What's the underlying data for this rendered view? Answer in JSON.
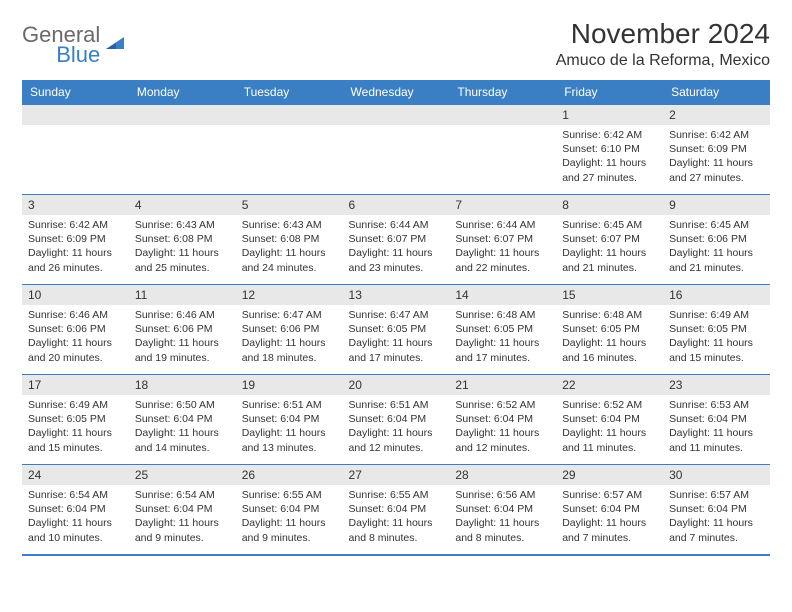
{
  "logo": {
    "line1": "General",
    "line2": "Blue"
  },
  "title": "November 2024",
  "location": "Amuco de la Reforma, Mexico",
  "header_bg": "#3a7fc4",
  "weekdays": [
    "Sunday",
    "Monday",
    "Tuesday",
    "Wednesday",
    "Thursday",
    "Friday",
    "Saturday"
  ],
  "rows": [
    [
      null,
      null,
      null,
      null,
      null,
      {
        "n": "1",
        "sunrise": "Sunrise: 6:42 AM",
        "sunset": "Sunset: 6:10 PM",
        "daylight": "Daylight: 11 hours and 27 minutes."
      },
      {
        "n": "2",
        "sunrise": "Sunrise: 6:42 AM",
        "sunset": "Sunset: 6:09 PM",
        "daylight": "Daylight: 11 hours and 27 minutes."
      }
    ],
    [
      {
        "n": "3",
        "sunrise": "Sunrise: 6:42 AM",
        "sunset": "Sunset: 6:09 PM",
        "daylight": "Daylight: 11 hours and 26 minutes."
      },
      {
        "n": "4",
        "sunrise": "Sunrise: 6:43 AM",
        "sunset": "Sunset: 6:08 PM",
        "daylight": "Daylight: 11 hours and 25 minutes."
      },
      {
        "n": "5",
        "sunrise": "Sunrise: 6:43 AM",
        "sunset": "Sunset: 6:08 PM",
        "daylight": "Daylight: 11 hours and 24 minutes."
      },
      {
        "n": "6",
        "sunrise": "Sunrise: 6:44 AM",
        "sunset": "Sunset: 6:07 PM",
        "daylight": "Daylight: 11 hours and 23 minutes."
      },
      {
        "n": "7",
        "sunrise": "Sunrise: 6:44 AM",
        "sunset": "Sunset: 6:07 PM",
        "daylight": "Daylight: 11 hours and 22 minutes."
      },
      {
        "n": "8",
        "sunrise": "Sunrise: 6:45 AM",
        "sunset": "Sunset: 6:07 PM",
        "daylight": "Daylight: 11 hours and 21 minutes."
      },
      {
        "n": "9",
        "sunrise": "Sunrise: 6:45 AM",
        "sunset": "Sunset: 6:06 PM",
        "daylight": "Daylight: 11 hours and 21 minutes."
      }
    ],
    [
      {
        "n": "10",
        "sunrise": "Sunrise: 6:46 AM",
        "sunset": "Sunset: 6:06 PM",
        "daylight": "Daylight: 11 hours and 20 minutes."
      },
      {
        "n": "11",
        "sunrise": "Sunrise: 6:46 AM",
        "sunset": "Sunset: 6:06 PM",
        "daylight": "Daylight: 11 hours and 19 minutes."
      },
      {
        "n": "12",
        "sunrise": "Sunrise: 6:47 AM",
        "sunset": "Sunset: 6:06 PM",
        "daylight": "Daylight: 11 hours and 18 minutes."
      },
      {
        "n": "13",
        "sunrise": "Sunrise: 6:47 AM",
        "sunset": "Sunset: 6:05 PM",
        "daylight": "Daylight: 11 hours and 17 minutes."
      },
      {
        "n": "14",
        "sunrise": "Sunrise: 6:48 AM",
        "sunset": "Sunset: 6:05 PM",
        "daylight": "Daylight: 11 hours and 17 minutes."
      },
      {
        "n": "15",
        "sunrise": "Sunrise: 6:48 AM",
        "sunset": "Sunset: 6:05 PM",
        "daylight": "Daylight: 11 hours and 16 minutes."
      },
      {
        "n": "16",
        "sunrise": "Sunrise: 6:49 AM",
        "sunset": "Sunset: 6:05 PM",
        "daylight": "Daylight: 11 hours and 15 minutes."
      }
    ],
    [
      {
        "n": "17",
        "sunrise": "Sunrise: 6:49 AM",
        "sunset": "Sunset: 6:05 PM",
        "daylight": "Daylight: 11 hours and 15 minutes."
      },
      {
        "n": "18",
        "sunrise": "Sunrise: 6:50 AM",
        "sunset": "Sunset: 6:04 PM",
        "daylight": "Daylight: 11 hours and 14 minutes."
      },
      {
        "n": "19",
        "sunrise": "Sunrise: 6:51 AM",
        "sunset": "Sunset: 6:04 PM",
        "daylight": "Daylight: 11 hours and 13 minutes."
      },
      {
        "n": "20",
        "sunrise": "Sunrise: 6:51 AM",
        "sunset": "Sunset: 6:04 PM",
        "daylight": "Daylight: 11 hours and 12 minutes."
      },
      {
        "n": "21",
        "sunrise": "Sunrise: 6:52 AM",
        "sunset": "Sunset: 6:04 PM",
        "daylight": "Daylight: 11 hours and 12 minutes."
      },
      {
        "n": "22",
        "sunrise": "Sunrise: 6:52 AM",
        "sunset": "Sunset: 6:04 PM",
        "daylight": "Daylight: 11 hours and 11 minutes."
      },
      {
        "n": "23",
        "sunrise": "Sunrise: 6:53 AM",
        "sunset": "Sunset: 6:04 PM",
        "daylight": "Daylight: 11 hours and 11 minutes."
      }
    ],
    [
      {
        "n": "24",
        "sunrise": "Sunrise: 6:54 AM",
        "sunset": "Sunset: 6:04 PM",
        "daylight": "Daylight: 11 hours and 10 minutes."
      },
      {
        "n": "25",
        "sunrise": "Sunrise: 6:54 AM",
        "sunset": "Sunset: 6:04 PM",
        "daylight": "Daylight: 11 hours and 9 minutes."
      },
      {
        "n": "26",
        "sunrise": "Sunrise: 6:55 AM",
        "sunset": "Sunset: 6:04 PM",
        "daylight": "Daylight: 11 hours and 9 minutes."
      },
      {
        "n": "27",
        "sunrise": "Sunrise: 6:55 AM",
        "sunset": "Sunset: 6:04 PM",
        "daylight": "Daylight: 11 hours and 8 minutes."
      },
      {
        "n": "28",
        "sunrise": "Sunrise: 6:56 AM",
        "sunset": "Sunset: 6:04 PM",
        "daylight": "Daylight: 11 hours and 8 minutes."
      },
      {
        "n": "29",
        "sunrise": "Sunrise: 6:57 AM",
        "sunset": "Sunset: 6:04 PM",
        "daylight": "Daylight: 11 hours and 7 minutes."
      },
      {
        "n": "30",
        "sunrise": "Sunrise: 6:57 AM",
        "sunset": "Sunset: 6:04 PM",
        "daylight": "Daylight: 11 hours and 7 minutes."
      }
    ]
  ]
}
